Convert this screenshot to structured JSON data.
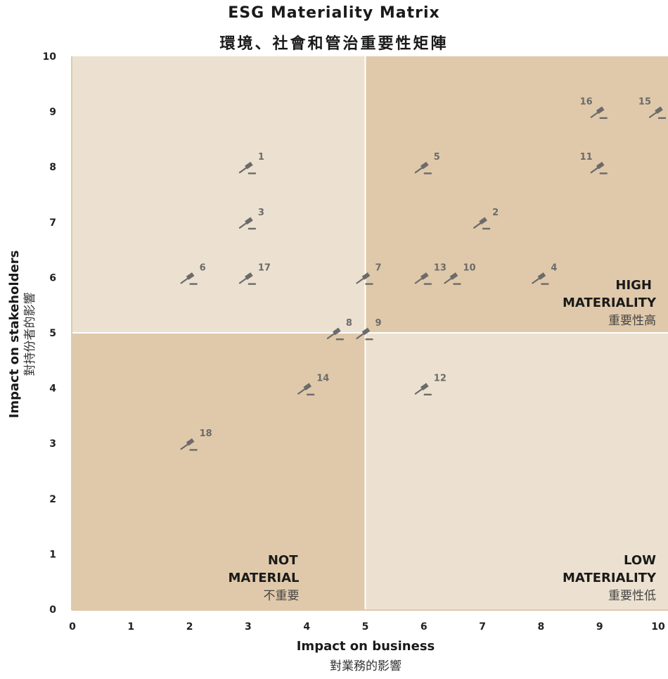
{
  "chart_data": {
    "type": "scatter",
    "title": "ESG Materiality Matrix",
    "subtitle": "環境、社會和管治重要性矩陣",
    "xlabel": "Impact on business",
    "xlabel_zh": "對業務的影響",
    "ylabel": "Impact on stakeholders",
    "ylabel_zh": "對持份者的影響",
    "xlim": [
      0,
      10
    ],
    "ylim": [
      0,
      10
    ],
    "xticks": [
      "0",
      "1",
      "2",
      "3",
      "4",
      "5",
      "6",
      "7",
      "8",
      "9",
      "10"
    ],
    "yticks": [
      "0",
      "1",
      "2",
      "3",
      "4",
      "5",
      "6",
      "7",
      "8",
      "9",
      "10"
    ],
    "grid": false,
    "marker_icon": "gavel-icon",
    "colors": {
      "dark_quadrant": "#e0c9aa",
      "light_quadrant": "#ece1d0",
      "marker": "#6b6b6b",
      "axis": "#c9a877"
    },
    "quadrants": [
      {
        "id": "not-material",
        "lines": [
          "NOT",
          "MATERIAL"
        ],
        "sub": "不重要",
        "shade": "dark"
      },
      {
        "id": "low-materiality",
        "lines": [
          "LOW",
          "MATERIALITY"
        ],
        "sub": "重要性低",
        "shade": "light"
      },
      {
        "id": "high-materiality",
        "lines": [
          "HIGH",
          "MATERIALITY"
        ],
        "sub": "重要性高",
        "shade": "dark"
      },
      {
        "id": "upper-left",
        "lines": [],
        "sub": "",
        "shade": "light"
      }
    ],
    "points": [
      {
        "label": "1",
        "x": 3,
        "y": 8
      },
      {
        "label": "2",
        "x": 7,
        "y": 7
      },
      {
        "label": "3",
        "x": 3,
        "y": 7
      },
      {
        "label": "4",
        "x": 8,
        "y": 6
      },
      {
        "label": "5",
        "x": 6,
        "y": 8
      },
      {
        "label": "6",
        "x": 2,
        "y": 6
      },
      {
        "label": "7",
        "x": 5,
        "y": 6
      },
      {
        "label": "8",
        "x": 4.5,
        "y": 5
      },
      {
        "label": "9",
        "x": 5,
        "y": 5
      },
      {
        "label": "10",
        "x": 6.5,
        "y": 6
      },
      {
        "label": "11",
        "x": 9,
        "y": 8
      },
      {
        "label": "12",
        "x": 6,
        "y": 4
      },
      {
        "label": "13",
        "x": 6,
        "y": 6
      },
      {
        "label": "14",
        "x": 4,
        "y": 4
      },
      {
        "label": "15",
        "x": 10,
        "y": 9
      },
      {
        "label": "16",
        "x": 9,
        "y": 9
      },
      {
        "label": "17",
        "x": 3,
        "y": 6
      },
      {
        "label": "18",
        "x": 2,
        "y": 3
      }
    ]
  }
}
